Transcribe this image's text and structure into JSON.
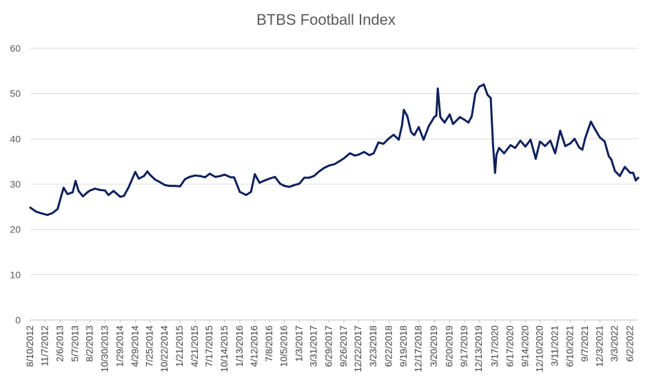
{
  "chart_data": {
    "type": "line",
    "title": "BTBS Football Index",
    "xlabel": "",
    "ylabel": "",
    "ylim": [
      0,
      60
    ],
    "yticks": [
      0,
      10,
      20,
      30,
      40,
      50,
      60
    ],
    "grid": true,
    "legend": "none",
    "x_tick_labels": [
      "8/10/2012",
      "11/7/2012",
      "2/6/2013",
      "5/7/2013",
      "8/2/2013",
      "10/30/2013",
      "1/29/2014",
      "4/29/2014",
      "7/25/2014",
      "10/22/2014",
      "1/21/2015",
      "4/21/2015",
      "7/17/2015",
      "10/14/2015",
      "1/13/2016",
      "4/12/2016",
      "7/8/2016",
      "10/5/2016",
      "1/3/2017",
      "3/31/2017",
      "6/29/2017",
      "9/26/2017",
      "12/22/2017",
      "3/23/2018",
      "6/22/2018",
      "9/19/2018",
      "12/17/2018",
      "3/20/2019",
      "6/20/2019",
      "9/17/2019",
      "12/13/2019",
      "3/17/2020",
      "6/17/2020",
      "9/14/2020",
      "12/10/2020",
      "3/11/2021",
      "6/10/2021",
      "9/7/2021",
      "12/3/2021",
      "3/3/2022",
      "6/2/2022"
    ],
    "series": [
      {
        "color": "#0d1f5c",
        "x": [
          "2012-08-10",
          "2012-09-15",
          "2012-10-20",
          "2012-11-20",
          "2012-12-20",
          "2013-01-20",
          "2013-02-10",
          "2013-02-25",
          "2013-03-20",
          "2013-04-20",
          "2013-05-07",
          "2013-05-25",
          "2013-06-20",
          "2013-07-20",
          "2013-08-02",
          "2013-09-01",
          "2013-10-01",
          "2013-10-30",
          "2013-11-20",
          "2013-12-20",
          "2014-01-29",
          "2014-02-20",
          "2014-03-20",
          "2014-04-29",
          "2014-05-20",
          "2014-06-20",
          "2014-07-10",
          "2014-07-25",
          "2014-08-25",
          "2014-09-20",
          "2014-10-22",
          "2014-11-20",
          "2014-12-20",
          "2015-01-21",
          "2015-02-20",
          "2015-03-20",
          "2015-04-21",
          "2015-05-20",
          "2015-06-20",
          "2015-07-17",
          "2015-08-20",
          "2015-09-20",
          "2015-10-14",
          "2015-11-20",
          "2015-12-10",
          "2016-01-13",
          "2016-02-20",
          "2016-03-20",
          "2016-04-12",
          "2016-05-10",
          "2016-06-10",
          "2016-07-08",
          "2016-08-10",
          "2016-09-10",
          "2016-10-05",
          "2016-11-05",
          "2016-12-05",
          "2017-01-03",
          "2017-02-01",
          "2017-03-01",
          "2017-03-31",
          "2017-05-01",
          "2017-06-01",
          "2017-06-29",
          "2017-08-01",
          "2017-09-01",
          "2017-09-26",
          "2017-11-01",
          "2017-12-01",
          "2017-12-22",
          "2018-01-25",
          "2018-02-25",
          "2018-03-23",
          "2018-04-20",
          "2018-05-20",
          "2018-06-22",
          "2018-07-20",
          "2018-08-20",
          "2018-09-08",
          "2018-09-19",
          "2018-10-10",
          "2018-11-01",
          "2018-11-20",
          "2018-12-17",
          "2019-01-15",
          "2019-02-15",
          "2019-03-20",
          "2019-04-01",
          "2019-04-10",
          "2019-04-25",
          "2019-05-20",
          "2019-06-20",
          "2019-07-10",
          "2019-08-01",
          "2019-08-20",
          "2019-09-17",
          "2019-10-10",
          "2019-10-30",
          "2019-11-20",
          "2019-12-13",
          "2020-01-10",
          "2020-02-01",
          "2020-02-20",
          "2020-03-05",
          "2020-03-17",
          "2020-03-25",
          "2020-04-10",
          "2020-05-10",
          "2020-06-17",
          "2020-07-15",
          "2020-08-15",
          "2020-09-14",
          "2020-10-15",
          "2020-11-15",
          "2020-12-10",
          "2021-01-10",
          "2021-02-10",
          "2021-03-11",
          "2021-04-10",
          "2021-05-10",
          "2021-06-10",
          "2021-07-05",
          "2021-08-01",
          "2021-08-20",
          "2021-09-07",
          "2021-09-20",
          "2021-10-10",
          "2021-11-01",
          "2021-12-03",
          "2022-01-01",
          "2022-01-25",
          "2022-02-10",
          "2022-03-03",
          "2022-04-01",
          "2022-05-01",
          "2022-06-02",
          "2022-06-20",
          "2022-07-05",
          "2022-07-20"
        ],
        "y": [
          24.8,
          23.9,
          23.5,
          23.2,
          23.6,
          24.5,
          27.3,
          29.2,
          27.8,
          28.2,
          30.7,
          28.5,
          27.3,
          28.3,
          28.6,
          29.0,
          28.7,
          28.6,
          27.6,
          28.5,
          27.2,
          27.4,
          29.3,
          32.7,
          31.2,
          31.8,
          32.8,
          32.1,
          31.0,
          30.5,
          29.8,
          29.6,
          29.6,
          29.5,
          31.1,
          31.6,
          31.9,
          31.8,
          31.5,
          32.3,
          31.6,
          31.8,
          32.1,
          31.5,
          31.5,
          28.3,
          27.6,
          28.3,
          32.2,
          30.3,
          30.8,
          31.2,
          31.6,
          30.1,
          29.6,
          29.4,
          29.8,
          30.1,
          31.4,
          31.4,
          31.8,
          32.8,
          33.6,
          34.1,
          34.4,
          35.1,
          35.7,
          36.8,
          36.3,
          36.5,
          37.1,
          36.4,
          36.8,
          39.2,
          38.9,
          40.1,
          40.9,
          39.8,
          43.0,
          46.4,
          45.0,
          41.5,
          40.8,
          42.6,
          39.8,
          42.8,
          44.8,
          45.1,
          51.1,
          44.8,
          43.6,
          45.4,
          43.3,
          44.1,
          44.8,
          44.2,
          43.6,
          45.0,
          50.0,
          51.5,
          52.0,
          49.7,
          49.0,
          38.5,
          32.5,
          36.5,
          38.0,
          36.8,
          38.6,
          38.0,
          39.6,
          38.3,
          39.8,
          35.6,
          39.4,
          38.4,
          39.6,
          36.8,
          41.8,
          38.4,
          39.0,
          40.0,
          38.1,
          37.6,
          40.2,
          41.6,
          43.8,
          42.3,
          40.3,
          39.4,
          36.2,
          35.4,
          32.9,
          31.8,
          33.8,
          32.5,
          32.5,
          30.8,
          31.4
        ]
      }
    ]
  }
}
